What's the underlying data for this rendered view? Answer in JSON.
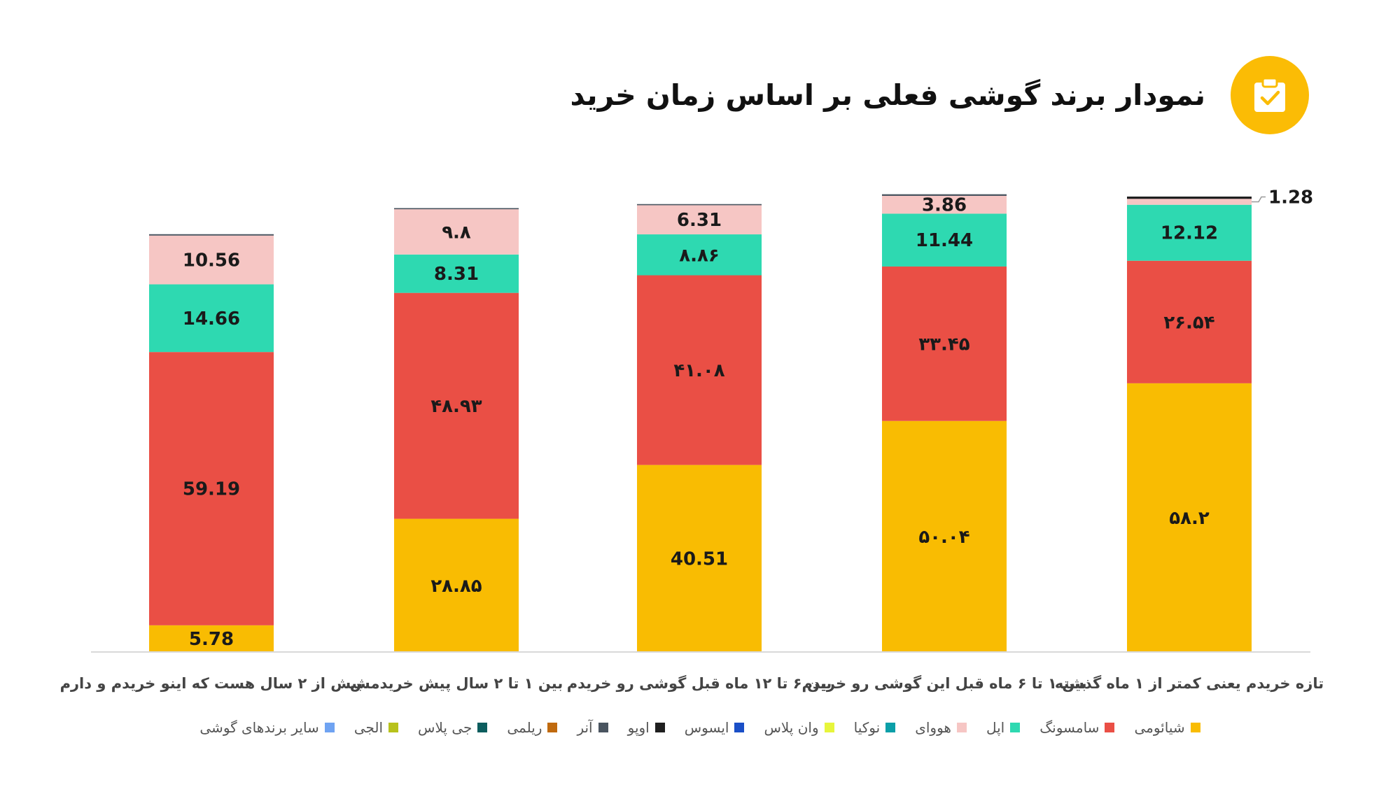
{
  "header": {
    "title": "نمودار برند گوشی فعلی بر اساس زمان خرید",
    "icon": "clipboard-check-icon",
    "badge_color": "#fbbc05"
  },
  "chart_data": {
    "type": "bar",
    "stacked": true,
    "categories": [
      "تازه خریدم یعنی کمتر از ۱ ماه گذشته",
      "بین ۱ تا ۶ ماه قبل این گوشی رو خریدم",
      "بین ۶ تا ۱۲ ماه قبل گوشی رو خریدم",
      "بین ۱ تا ۲ سال پیش خریدمش",
      "بیش از ۲ سال هست که اینو خریدم و دارم"
    ],
    "category_order": "right-to-left",
    "series": [
      {
        "name": "شیائومی",
        "color": "#f9bc02",
        "values": [
          58.2,
          50.04,
          40.51,
          28.85,
          5.78
        ],
        "labels": [
          "۵۸.۲",
          "۵۰.۰۴",
          "40.51",
          "۲۸.۸۵",
          "5.78"
        ]
      },
      {
        "name": "سامسونگ",
        "color": "#ea4f45",
        "values": [
          26.54,
          33.45,
          41.08,
          48.93,
          59.19
        ],
        "labels": [
          "۲۶.۵۴",
          "۳۳.۴۵",
          "۴۱.۰۸",
          "۴۸.۹۳",
          "59.19"
        ]
      },
      {
        "name": "اپل",
        "color": "#2ed9b1",
        "values": [
          12.12,
          11.44,
          8.86,
          8.31,
          14.66
        ],
        "labels": [
          "12.12",
          "11.44",
          "۸.۸۶",
          "8.31",
          "14.66"
        ]
      },
      {
        "name": "هووای",
        "color": "#f6c6c4",
        "values": [
          1.28,
          3.86,
          6.31,
          9.8,
          10.56
        ],
        "labels": [
          "1.28",
          "3.86",
          "6.31",
          "۹.۸",
          "10.56"
        ]
      },
      {
        "name": "نوکیا",
        "color": "#0b9fa8",
        "values": [
          0,
          0,
          0,
          0,
          0
        ],
        "labels": []
      },
      {
        "name": "وان پلاس",
        "color": "#e7f53b",
        "values": [
          0,
          0,
          0,
          0,
          0
        ],
        "labels": []
      },
      {
        "name": "ایسوس",
        "color": "#1a4fc7",
        "values": [
          0,
          0,
          0,
          0,
          0
        ],
        "labels": []
      },
      {
        "name": "اوپو",
        "color": "#1f1f1f",
        "values": [
          0.5,
          0,
          0,
          0,
          0
        ],
        "labels": []
      },
      {
        "name": "آنر",
        "color": "#4a5560",
        "values": [
          0,
          0.35,
          0.25,
          0.25,
          0.3
        ],
        "labels": []
      },
      {
        "name": "ریلمی",
        "color": "#c06a0e",
        "values": [
          0,
          0,
          0,
          0,
          0
        ],
        "labels": []
      },
      {
        "name": "جی پلاس",
        "color": "#0c5d5e",
        "values": [
          0,
          0,
          0,
          0,
          0
        ],
        "labels": []
      },
      {
        "name": "الجی",
        "color": "#b8c21c",
        "values": [
          0,
          0,
          0,
          0,
          0
        ],
        "labels": []
      },
      {
        "name": "سایر برندهای گوشی",
        "color": "#6fa3f2",
        "values": [
          0,
          0,
          0,
          0,
          0
        ],
        "labels": []
      }
    ],
    "callout": {
      "series": "هووای",
      "category_index": 0,
      "text": "1.28"
    },
    "ylim": [
      0,
      100
    ],
    "grid": false,
    "legend_position": "bottom"
  }
}
